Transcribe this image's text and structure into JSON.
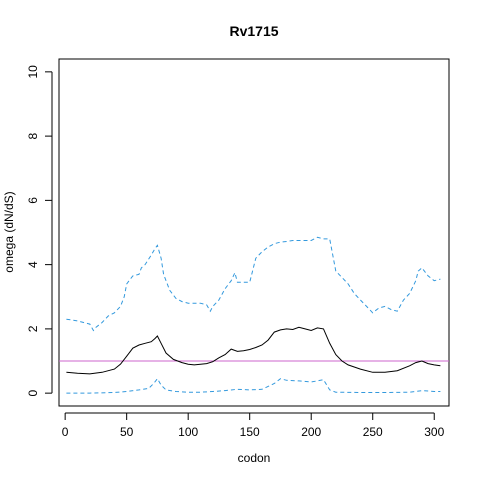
{
  "chart_data": {
    "type": "line",
    "title": "Rv1715",
    "xlabel": "codon",
    "ylabel": "omega (dN/dS)",
    "xlim": [
      -5,
      312
    ],
    "ylim": [
      -0.4,
      10.4
    ],
    "x_ticks": [
      0,
      50,
      100,
      150,
      200,
      250,
      300
    ],
    "y_ticks": [
      0,
      2,
      4,
      6,
      8,
      10
    ],
    "grid": false,
    "legend": "none",
    "reference_line": {
      "y": 1,
      "color": "#cc66cc"
    },
    "series": [
      {
        "style": "solid",
        "color": "#000000",
        "x": [
          1,
          10,
          20,
          30,
          40,
          45,
          50,
          55,
          60,
          65,
          70,
          73,
          75,
          78,
          82,
          88,
          95,
          100,
          105,
          110,
          115,
          120,
          125,
          130,
          135,
          140,
          145,
          150,
          155,
          160,
          165,
          170,
          175,
          180,
          185,
          190,
          195,
          200,
          205,
          210,
          215,
          220,
          225,
          230,
          240,
          250,
          260,
          270,
          280,
          285,
          290,
          295,
          300,
          305
        ],
        "y": [
          0.65,
          0.62,
          0.6,
          0.65,
          0.75,
          0.9,
          1.15,
          1.4,
          1.5,
          1.55,
          1.6,
          1.7,
          1.78,
          1.55,
          1.25,
          1.05,
          0.95,
          0.9,
          0.88,
          0.9,
          0.92,
          0.98,
          1.1,
          1.2,
          1.37,
          1.3,
          1.32,
          1.36,
          1.42,
          1.5,
          1.65,
          1.9,
          1.97,
          2.0,
          1.98,
          2.05,
          2.0,
          1.95,
          2.03,
          2.0,
          1.55,
          1.2,
          1.0,
          0.88,
          0.75,
          0.65,
          0.65,
          0.7,
          0.85,
          0.95,
          1.0,
          0.92,
          0.88,
          0.85
        ]
      },
      {
        "style": "dashed",
        "color": "#3399dd",
        "x": [
          1,
          5,
          10,
          15,
          20,
          23,
          25,
          30,
          35,
          40,
          45,
          48,
          50,
          55,
          60,
          62,
          65,
          70,
          73,
          75,
          78,
          80,
          85,
          90,
          95,
          100,
          105,
          110,
          115,
          118,
          120,
          125,
          130,
          135,
          138,
          140,
          145,
          150,
          155,
          160,
          165,
          170,
          175,
          180,
          185,
          190,
          195,
          200,
          205,
          210,
          215,
          220,
          225,
          230,
          235,
          240,
          245,
          250,
          255,
          260,
          265,
          270,
          275,
          280,
          285,
          287,
          290,
          295,
          300,
          305
        ],
        "y": [
          2.3,
          2.28,
          2.25,
          2.2,
          2.15,
          1.95,
          2.05,
          2.2,
          2.4,
          2.5,
          2.7,
          3.0,
          3.4,
          3.65,
          3.7,
          3.9,
          4.0,
          4.3,
          4.5,
          4.6,
          4.2,
          3.7,
          3.2,
          2.95,
          2.85,
          2.8,
          2.8,
          2.8,
          2.75,
          2.55,
          2.7,
          2.9,
          3.25,
          3.5,
          3.75,
          3.45,
          3.45,
          3.45,
          4.2,
          4.4,
          4.55,
          4.65,
          4.7,
          4.72,
          4.75,
          4.75,
          4.75,
          4.75,
          4.85,
          4.8,
          4.8,
          3.8,
          3.6,
          3.4,
          3.1,
          2.9,
          2.7,
          2.5,
          2.65,
          2.7,
          2.6,
          2.55,
          2.9,
          3.1,
          3.5,
          3.8,
          3.9,
          3.65,
          3.5,
          3.55
        ]
      },
      {
        "style": "dashed",
        "color": "#3399dd",
        "x": [
          1,
          20,
          40,
          50,
          60,
          68,
          72,
          75,
          78,
          82,
          90,
          100,
          110,
          120,
          130,
          140,
          150,
          160,
          170,
          175,
          180,
          190,
          200,
          205,
          210,
          215,
          220,
          240,
          260,
          280,
          290,
          300,
          305
        ],
        "y": [
          0.0,
          0.0,
          0.02,
          0.05,
          0.1,
          0.15,
          0.3,
          0.45,
          0.25,
          0.1,
          0.05,
          0.03,
          0.03,
          0.05,
          0.08,
          0.12,
          0.1,
          0.12,
          0.3,
          0.45,
          0.4,
          0.38,
          0.35,
          0.38,
          0.42,
          0.1,
          0.03,
          0.02,
          0.02,
          0.03,
          0.08,
          0.05,
          0.05
        ]
      }
    ]
  }
}
